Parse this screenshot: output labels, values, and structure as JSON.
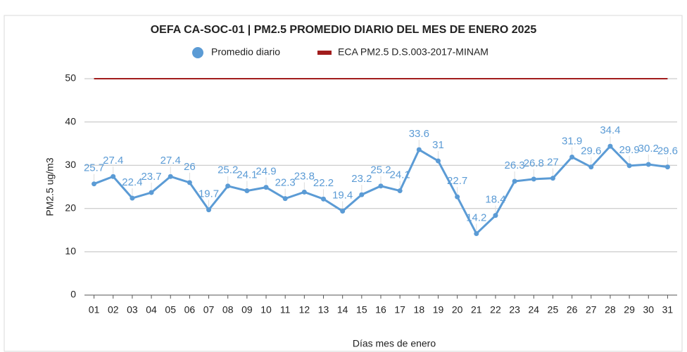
{
  "chart_data": {
    "type": "line",
    "title": "OEFA CA-SOC-01 | PM2.5 PROMEDIO DIARIO DEL MES DE ENERO 2025",
    "x_label": "Días mes de enero",
    "y_label": "PM2.5 ug/m3",
    "categories": [
      "01",
      "02",
      "03",
      "04",
      "05",
      "06",
      "07",
      "08",
      "09",
      "10",
      "11",
      "12",
      "13",
      "14",
      "15",
      "16",
      "17",
      "18",
      "19",
      "20",
      "21",
      "22",
      "23",
      "24",
      "25",
      "26",
      "27",
      "28",
      "29",
      "30",
      "31"
    ],
    "series": [
      {
        "name": "Promedio diario",
        "color": "#5b9bd5",
        "values": [
          25.7,
          27.4,
          22.4,
          23.7,
          27.4,
          26,
          19.7,
          25.2,
          24.1,
          24.9,
          22.3,
          23.8,
          22.2,
          19.4,
          23.2,
          25.2,
          24.1,
          33.6,
          31,
          22.7,
          14.2,
          18.4,
          26.3,
          26.8,
          27,
          31.9,
          29.6,
          34.4,
          29.9,
          30.2,
          29.6
        ]
      }
    ],
    "reference_lines": [
      {
        "name": "ECA PM2.5 D.S.003-2017-MINAM",
        "color": "#a11c1c",
        "value": 50
      }
    ],
    "ylim": [
      0,
      50
    ],
    "yticks": [
      0,
      10,
      20,
      30,
      40,
      50
    ],
    "grid": true,
    "legend": "top"
  }
}
